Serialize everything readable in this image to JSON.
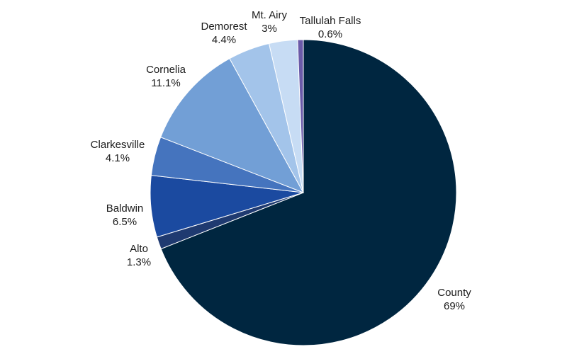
{
  "chart_data": {
    "type": "pie",
    "title": "",
    "slices": [
      {
        "label": "County",
        "pct_label": "69%",
        "value": 69,
        "color": "#002640"
      },
      {
        "label": "Alto",
        "pct_label": "1.3%",
        "value": 1.3,
        "color": "#1f3a70"
      },
      {
        "label": "Baldwin",
        "pct_label": "6.5%",
        "value": 6.5,
        "color": "#1b4aa0"
      },
      {
        "label": "Clarkesville",
        "pct_label": "4.1%",
        "value": 4.1,
        "color": "#4574be"
      },
      {
        "label": "Cornelia",
        "pct_label": "11.1%",
        "value": 11.1,
        "color": "#729fd6"
      },
      {
        "label": "Demorest",
        "pct_label": "4.4%",
        "value": 4.4,
        "color": "#a3c4ea"
      },
      {
        "label": "Mt. Airy",
        "pct_label": "3%",
        "value": 3,
        "color": "#c7dcf4"
      },
      {
        "label": "Tallulah Falls",
        "pct_label": "0.6%",
        "value": 0.6,
        "color": "#6a5aa8"
      }
    ],
    "legend": "none",
    "grid": false
  }
}
